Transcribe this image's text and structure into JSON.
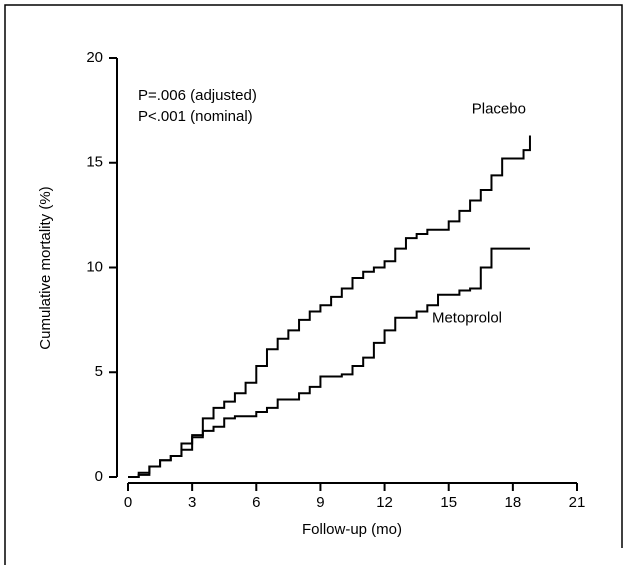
{
  "chart_data": {
    "type": "step",
    "xlabel": "Follow-up (mo)",
    "ylabel": "Cumulative mortality (%)",
    "annotations": [
      "P=.006 (adjusted)",
      "P<.001 (nominal)"
    ],
    "xlim": [
      0,
      21
    ],
    "xticks": [
      0,
      3,
      6,
      9,
      12,
      15,
      18,
      21
    ],
    "ylim": [
      0,
      20
    ],
    "yticks": [
      0,
      5,
      10,
      15,
      20
    ],
    "series": [
      {
        "name": "Placebo",
        "color": "#000000",
        "x": [
          0,
          0.5,
          1,
          1.5,
          2,
          2.5,
          3,
          3.5,
          4,
          4.5,
          5,
          5.5,
          6,
          6.5,
          7,
          7.5,
          8,
          8.5,
          9,
          9.5,
          10,
          10.5,
          11,
          11.5,
          12,
          12.5,
          13,
          13.5,
          14,
          15,
          15.5,
          16,
          16.5,
          17,
          17.5,
          18.5,
          18.8
        ],
        "values": [
          0,
          0.1,
          0.5,
          0.8,
          1.0,
          1.3,
          2.0,
          2.8,
          3.3,
          3.6,
          4.0,
          4.5,
          5.3,
          6.1,
          6.6,
          7.0,
          7.5,
          7.9,
          8.2,
          8.6,
          9.0,
          9.5,
          9.8,
          10.0,
          10.3,
          10.9,
          11.4,
          11.6,
          11.8,
          12.2,
          12.7,
          13.2,
          13.7,
          14.4,
          15.2,
          15.6,
          16.3
        ]
      },
      {
        "name": "Metoprolol",
        "color": "#000000",
        "x": [
          0,
          0.5,
          1,
          1.5,
          2,
          2.5,
          3,
          3.5,
          4,
          4.5,
          5,
          6,
          6.5,
          7,
          8,
          8.5,
          9,
          10,
          10.5,
          11,
          11.5,
          12,
          12.5,
          13.5,
          14,
          14.5,
          15.5,
          16,
          16.5,
          17,
          18.8
        ],
        "values": [
          0,
          0.2,
          0.5,
          0.8,
          1.0,
          1.6,
          1.9,
          2.2,
          2.4,
          2.8,
          2.9,
          3.1,
          3.3,
          3.7,
          4.0,
          4.3,
          4.8,
          4.9,
          5.3,
          5.7,
          6.4,
          7.0,
          7.6,
          7.9,
          8.2,
          8.7,
          8.9,
          9.0,
          10.0,
          10.9,
          10.9
        ]
      }
    ]
  }
}
